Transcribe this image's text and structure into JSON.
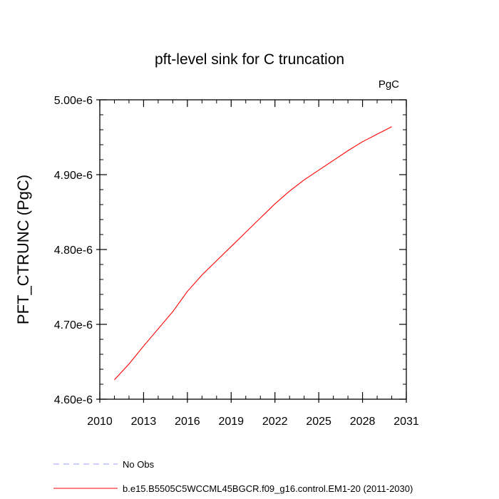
{
  "chart_data": {
    "type": "line",
    "title": "pft-level sink for C truncation",
    "units_label": "PgC",
    "ylabel": "PFT_CTRUNC  (PgC)",
    "xlabel": "",
    "xlim": [
      2010,
      2031
    ],
    "ylim": [
      4.6e-06,
      5e-06
    ],
    "x_ticks": [
      2010,
      2013,
      2016,
      2019,
      2022,
      2025,
      2028,
      2031
    ],
    "x_tick_labels": [
      "2010",
      "2013",
      "2016",
      "2019",
      "2022",
      "2025",
      "2028",
      "2031"
    ],
    "y_ticks": [
      4.6e-06,
      4.7e-06,
      4.8e-06,
      4.9e-06,
      5e-06
    ],
    "y_tick_labels": [
      "4.60e-6",
      "4.70e-6",
      "4.80e-6",
      "4.90e-6",
      "5.00e-6"
    ],
    "grid": false,
    "series": [
      {
        "name": "b.e15.B5505C5WCCML45BGCR.f09_g16.control.EM1-20 (2011-2030)",
        "color": "#ff0000",
        "style": "solid",
        "x": [
          2011,
          2012,
          2013,
          2014,
          2015,
          2016,
          2017,
          2018,
          2019,
          2020,
          2021,
          2022,
          2023,
          2024,
          2025,
          2026,
          2027,
          2028,
          2029,
          2030
        ],
        "y": [
          4.626e-06,
          4.647e-06,
          4.671e-06,
          4.694e-06,
          4.717e-06,
          4.744e-06,
          4.766e-06,
          4.785e-06,
          4.804e-06,
          4.823e-06,
          4.842e-06,
          4.861e-06,
          4.878e-06,
          4.893e-06,
          4.906e-06,
          4.919e-06,
          4.932e-06,
          4.944e-06,
          4.954e-06,
          4.964e-06
        ]
      },
      {
        "name": "No Obs",
        "color": "#9999ff",
        "style": "dashed",
        "x": [],
        "y": []
      }
    ],
    "legend_position": "bottom-left"
  }
}
